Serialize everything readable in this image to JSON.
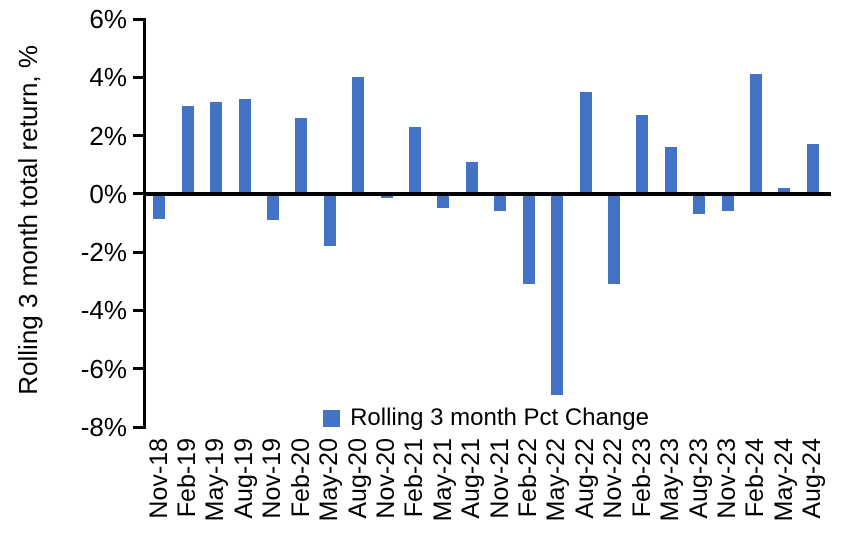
{
  "chart": {
    "y_axis_title": "Rolling 3 month total return, %",
    "legend_label": "Rolling 3 month Pct Change"
  },
  "chart_data": {
    "type": "bar",
    "title": "",
    "xlabel": "",
    "ylabel": "Rolling 3 month total return, %",
    "ylim": [
      -8,
      6
    ],
    "grid": false,
    "legend_position": "bottom-center",
    "bar_color": "#4472C4",
    "axis_color": "#000000",
    "ytick_values": [
      6,
      4,
      2,
      0,
      -2,
      -4,
      -6,
      -8
    ],
    "ytick_labels": [
      "6%",
      "4%",
      "2%",
      "0%",
      "-2%",
      "-4%",
      "-6%",
      "-8%"
    ],
    "categories": [
      "Nov-18",
      "Feb-19",
      "May-19",
      "Aug-19",
      "Nov-19",
      "Feb-20",
      "May-20",
      "Aug-20",
      "Nov-20",
      "Feb-21",
      "May-21",
      "Aug-21",
      "Nov-21",
      "Feb-22",
      "May-22",
      "Aug-22",
      "Nov-22",
      "Feb-23",
      "May-23",
      "Aug-23",
      "Nov-23",
      "Feb-24",
      "May-24",
      "Aug-24"
    ],
    "series": [
      {
        "name": "Rolling 3 month Pct Change",
        "values": [
          -0.85,
          3.0,
          3.15,
          3.25,
          -0.9,
          2.6,
          -1.8,
          4.0,
          -0.15,
          2.3,
          -0.5,
          1.1,
          -0.6,
          -3.1,
          -6.9,
          3.5,
          -3.1,
          2.7,
          1.6,
          -0.7,
          -0.6,
          4.1,
          0.2,
          1.7
        ]
      }
    ]
  }
}
